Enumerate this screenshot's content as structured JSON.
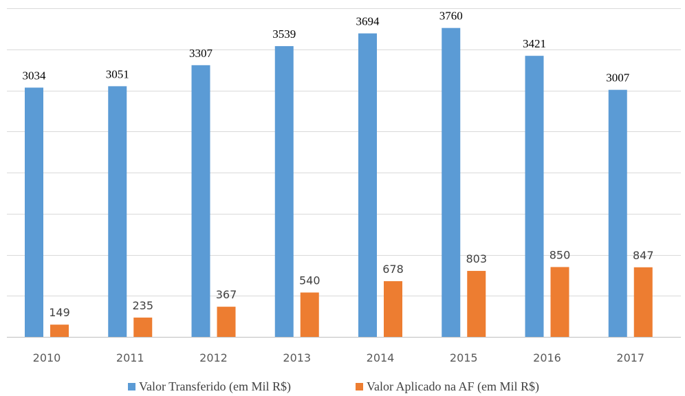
{
  "chart_data": {
    "type": "bar",
    "categories": [
      "2010",
      "2011",
      "2012",
      "2013",
      "2014",
      "2015",
      "2016",
      "2017"
    ],
    "series": [
      {
        "name": "Valor Transferido (em Mil R$)",
        "values": [
          3034,
          3051,
          3307,
          3539,
          3694,
          3760,
          3421,
          3007
        ],
        "color": "#5b9bd5"
      },
      {
        "name": "Valor Aplicado na AF (em Mil R$)",
        "values": [
          149,
          235,
          367,
          540,
          678,
          803,
          850,
          847
        ],
        "color": "#ed7d31"
      }
    ],
    "ylim": [
      0,
      4000
    ],
    "grid": true,
    "legend_position": "bottom"
  }
}
